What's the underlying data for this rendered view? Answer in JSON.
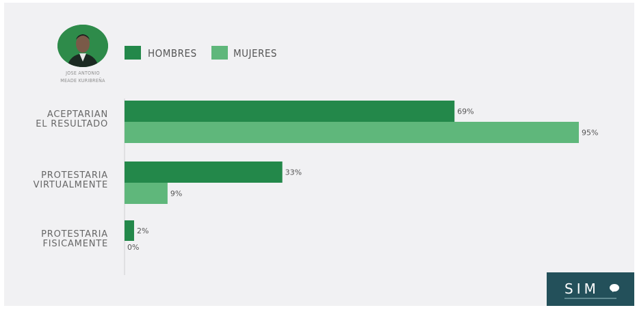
{
  "person": {
    "name_line1": "JOSE ANTONIO",
    "name_line2": "MEADE KURIBREÑA",
    "icon": "person-photo-icon"
  },
  "legend": [
    {
      "label": "HOMBRES",
      "color": "#23884a"
    },
    {
      "label": "MUJERES",
      "color": "#5fb77b"
    }
  ],
  "logo": {
    "text": "SIM",
    "icon": "speech-bubble-icon"
  },
  "chart_data": {
    "type": "bar",
    "orientation": "horizontal",
    "title": "",
    "xlabel": "",
    "ylabel": "",
    "xlim": [
      0,
      100
    ],
    "grid": false,
    "legend_position": "top",
    "categories": [
      [
        "ACEPTARIAN",
        "EL RESULTADO"
      ],
      [
        "PROTESTARIA",
        "VIRTUALMENTE"
      ],
      [
        "PROTESTARIA",
        "FISICAMENTE"
      ]
    ],
    "series": [
      {
        "name": "HOMBRES",
        "color": "#23884a",
        "values": [
          69,
          33,
          2
        ],
        "labels": [
          "69%",
          "33%",
          "2%"
        ]
      },
      {
        "name": "MUJERES",
        "color": "#5fb77b",
        "values": [
          95,
          9,
          0
        ],
        "labels": [
          "95%",
          "9%",
          "0%"
        ]
      }
    ]
  }
}
